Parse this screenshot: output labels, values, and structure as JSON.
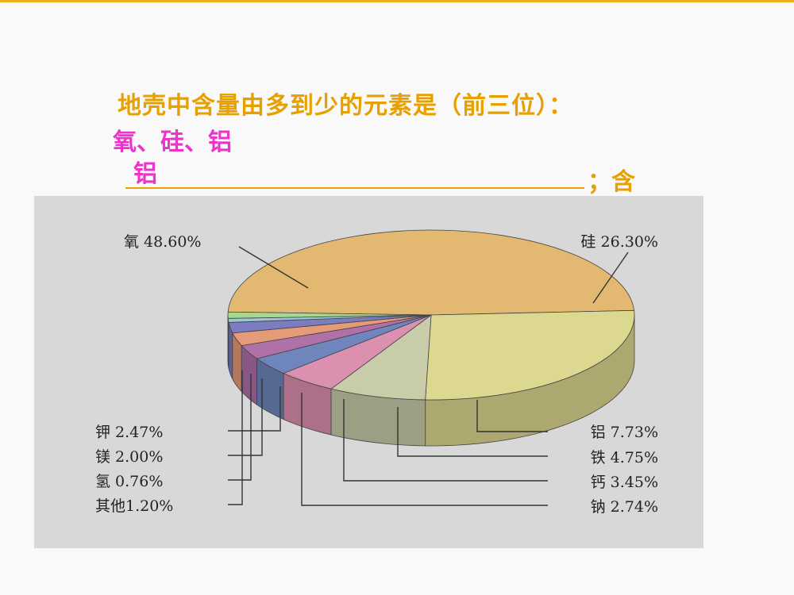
{
  "slide": {
    "question": "地壳中含量由多到少的元素是（前三位）：",
    "answer_line1": "氧、硅、铝",
    "answer_line2": "铝",
    "semicolon_text": "；含"
  },
  "chart_data": {
    "type": "pie",
    "title": "",
    "slices": [
      {
        "name": "氧",
        "value": 48.6,
        "label": "氧 48.60%",
        "color": "#e3b870"
      },
      {
        "name": "硅",
        "value": 26.3,
        "label": "硅 26.30%",
        "color": "#dcd890"
      },
      {
        "name": "铝",
        "value": 7.73,
        "label": "铝 7.73%",
        "color": "#c8cca8"
      },
      {
        "name": "铁",
        "value": 4.75,
        "label": "铁 4.75%",
        "color": "#dc90b0"
      },
      {
        "name": "钙",
        "value": 3.45,
        "label": "钙 3.45%",
        "color": "#6e86bc"
      },
      {
        "name": "钠",
        "value": 2.74,
        "label": "钠 2.74%",
        "color": "#b070a8"
      },
      {
        "name": "钾",
        "value": 2.47,
        "label": "钾 2.47%",
        "color": "#e59a78"
      },
      {
        "name": "镁",
        "value": 2.0,
        "label": "镁 2.00%",
        "color": "#7c7cc0"
      },
      {
        "name": "氢",
        "value": 0.76,
        "label": "氢 0.76%",
        "color": "#98c8d8"
      },
      {
        "name": "其他",
        "value": 1.2,
        "label": "其他1.20%",
        "color": "#a8d890"
      }
    ]
  }
}
